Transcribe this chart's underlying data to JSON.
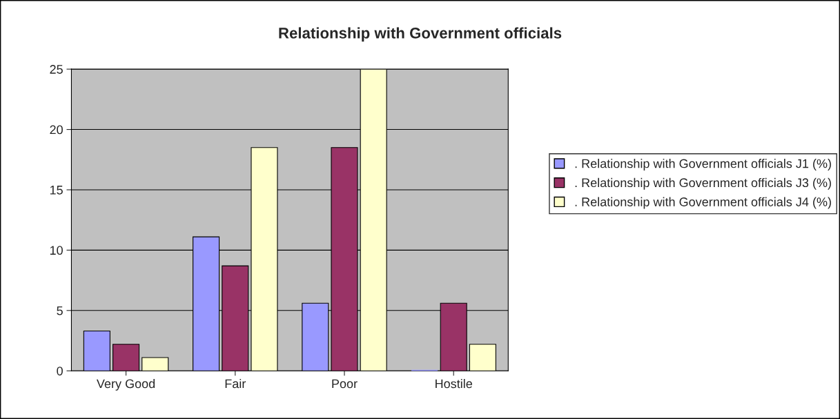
{
  "chart_data": {
    "type": "bar",
    "title": "Relationship with Government officials",
    "categories": [
      "Very Good",
      "Fair",
      "Poor",
      "Hostile"
    ],
    "series": [
      {
        "name": ". Relationship with Government officials J1 (%)",
        "color": "#9999ff",
        "values": [
          3.3,
          11.1,
          5.6,
          0
        ]
      },
      {
        "name": ". Relationship with Government officials J3 (%)",
        "color": "#993366",
        "values": [
          2.2,
          8.7,
          18.5,
          5.6
        ]
      },
      {
        "name": ". Relationship with Government officials J4 (%)",
        "color": "#ffffcc",
        "values": [
          1.1,
          18.5,
          25,
          2.2
        ]
      }
    ],
    "ylim": [
      0,
      25
    ],
    "yticks": [
      0,
      5,
      10,
      15,
      20,
      25
    ],
    "grid": "y",
    "legend": "right"
  }
}
